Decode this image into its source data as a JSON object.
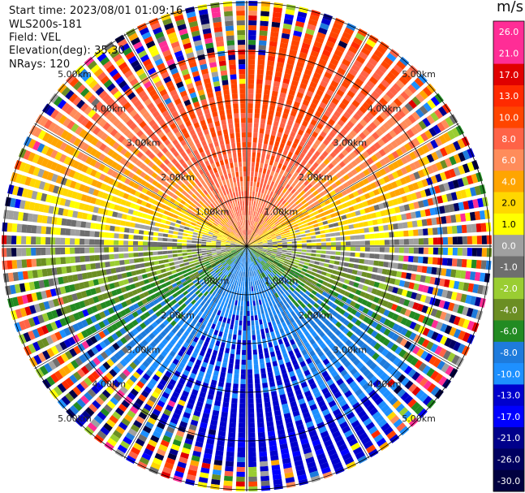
{
  "header": {
    "start_time": "Start time: 2023/08/01 01:09:16",
    "site": "WLS200s-181",
    "field": "Field: VEL",
    "elevation": "Elevation(deg): 35.30",
    "nrays": "NRays: 120"
  },
  "colorbar": {
    "unit": "m/s",
    "ticks": [
      "26.0",
      "21.0",
      "17.0",
      "13.0",
      "10.0",
      "8.0",
      "6.0",
      "4.0",
      "2.0",
      "1.0",
      "0.0",
      "-1.0",
      "-2.0",
      "-4.0",
      "-6.0",
      "-8.0",
      "-10.0",
      "-13.0",
      "-17.0",
      "-21.0",
      "-26.0",
      "-30.0"
    ],
    "colors": [
      "#ff2d96",
      "#ff2d96",
      "#e00000",
      "#ff2a00",
      "#ff4500",
      "#ff6347",
      "#ff8c5a",
      "#ffa500",
      "#ffd700",
      "#ffff00",
      "#a0a0a0",
      "#6e6e6e",
      "#9acd32",
      "#6b8e23",
      "#228b22",
      "#1e7bdc",
      "#1e90ff",
      "#0000cd",
      "#0000ff",
      "#00008b",
      "#000060",
      "#000040"
    ]
  },
  "chart_data": {
    "type": "heatmap",
    "plot_kind": "radar PPI (polar)",
    "field": "VEL",
    "unit": "m/s",
    "n_rays": 120,
    "range_rings_km": [
      1.0,
      2.0,
      3.0,
      4.0,
      5.0
    ],
    "range_ring_labels": [
      "1.00km",
      "2.00km",
      "3.00km",
      "4.00km",
      "5.00km"
    ],
    "clim": [
      -30.0,
      26.0
    ],
    "pattern": {
      "toward_north_sector": "positive ~8 to 13 m/s",
      "toward_south_sector": "negative ~-6 to -10 m/s",
      "east_west": "near 0 to 2 m/s",
      "far_range": "noisy / random"
    },
    "grid": true
  }
}
